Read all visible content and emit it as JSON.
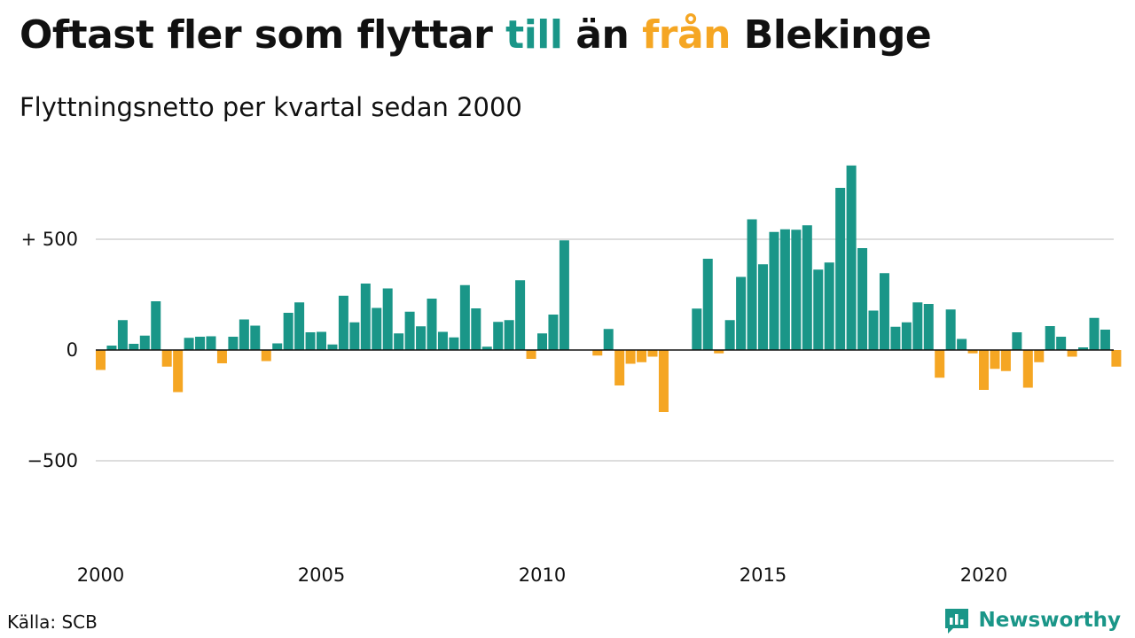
{
  "title": {
    "part1": "Oftast fler som flyttar ",
    "till": "till",
    "part2": " än ",
    "fran": "från",
    "part3": " Blekinge"
  },
  "subtitle": "Flyttningsnetto per kvartal sedan 2000",
  "source": "Källa: SCB",
  "brand": {
    "name": "Newsworthy",
    "icon": "newsworthy-chart-logo-icon"
  },
  "colors": {
    "positive": "#1a9688",
    "negative": "#f5a623",
    "grid": "#dddddd",
    "baseline": "#111111"
  },
  "chart_data": {
    "type": "bar",
    "title": "Oftast fler som flyttar till än från Blekinge",
    "subtitle": "Flyttningsnetto per kvartal sedan 2000",
    "xlabel": "",
    "ylabel": "",
    "ylim": [
      -800,
      850
    ],
    "grid": true,
    "legend": "none",
    "y_ticks": [
      {
        "value": 500,
        "label": "+ 500"
      },
      {
        "value": 0,
        "label": "0"
      },
      {
        "value": -500,
        "label": "−500"
      }
    ],
    "x_ticks": [
      {
        "value": 2000,
        "label": "2000"
      },
      {
        "value": 2005,
        "label": "2005"
      },
      {
        "value": 2010,
        "label": "2010"
      },
      {
        "value": 2015,
        "label": "2015"
      },
      {
        "value": 2020,
        "label": "2020"
      }
    ],
    "start_year": 2000,
    "start_quarter": 1,
    "values": [
      -90,
      20,
      135,
      28,
      65,
      220,
      -75,
      -190,
      55,
      60,
      62,
      -60,
      60,
      138,
      110,
      -50,
      30,
      168,
      215,
      80,
      82,
      25,
      245,
      125,
      300,
      190,
      278,
      75,
      173,
      107,
      232,
      82,
      57,
      293,
      188,
      15,
      127,
      135,
      315,
      -40,
      75,
      160,
      495,
      0,
      0,
      -25,
      95,
      -160,
      -62,
      -55,
      -30,
      -280,
      0,
      0,
      187,
      412,
      -15,
      135,
      330,
      590,
      387,
      533,
      545,
      543,
      563,
      363,
      395,
      732,
      833,
      460,
      178,
      347,
      105,
      125,
      215,
      208,
      -125,
      183,
      50,
      -15,
      -180,
      -85,
      -95,
      80,
      -170,
      -55,
      108,
      60,
      -30,
      12,
      145,
      92,
      -75
    ]
  }
}
